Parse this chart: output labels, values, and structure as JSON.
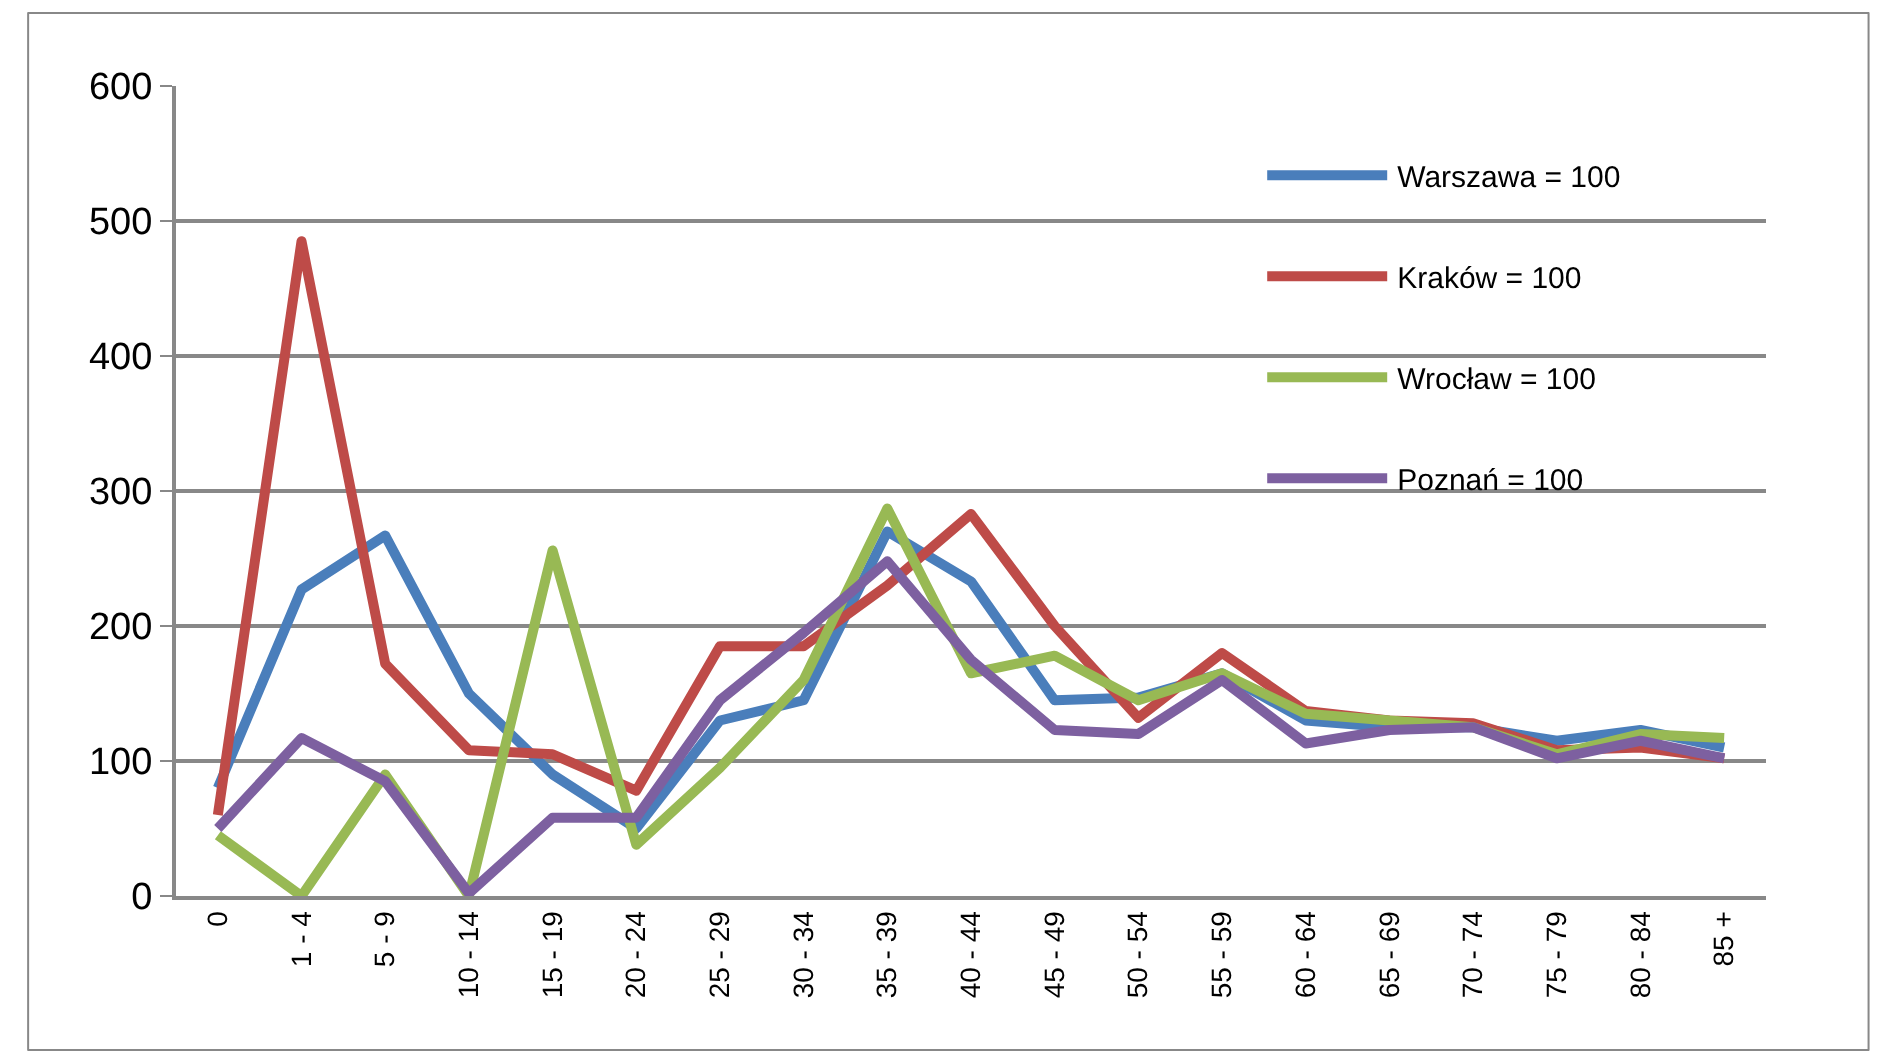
{
  "chart_data": {
    "type": "line",
    "categories": [
      "0",
      "1 - 4",
      "5 - 9",
      "10 - 14",
      "15 - 19",
      "20 - 24",
      "25 - 29",
      "30 - 34",
      "35 - 39",
      "40 - 44",
      "45 - 49",
      "50 - 54",
      "55 - 59",
      "60 - 64",
      "65 - 69",
      "70 - 74",
      "75 - 79",
      "80 - 84",
      "85 +"
    ],
    "series": [
      {
        "name": "Warszawa = 100",
        "color": "#4a7ebb",
        "values": [
          80,
          227,
          267,
          150,
          90,
          50,
          130,
          145,
          270,
          233,
          145,
          147,
          165,
          130,
          125,
          125,
          115,
          123,
          110
        ]
      },
      {
        "name": "Kraków = 100",
        "color": "#be4b48",
        "values": [
          60,
          485,
          172,
          108,
          105,
          78,
          185,
          185,
          230,
          283,
          200,
          132,
          180,
          137,
          130,
          128,
          108,
          110,
          102
        ]
      },
      {
        "name": "Wrocław = 100",
        "color": "#98b954",
        "values": [
          45,
          0,
          90,
          0,
          256,
          38,
          95,
          160,
          287,
          165,
          178,
          145,
          165,
          135,
          130,
          125,
          105,
          120,
          117
        ]
      },
      {
        "name": "Poznań = 100",
        "color": "#7d60a0",
        "values": [
          50,
          117,
          85,
          2,
          58,
          58,
          145,
          195,
          248,
          175,
          123,
          120,
          160,
          113,
          123,
          125,
          102,
          115,
          102
        ]
      }
    ],
    "ylim": [
      0,
      600
    ],
    "yticks": [
      0,
      100,
      200,
      300,
      400,
      500,
      600
    ],
    "grid": "y",
    "legend": "top right",
    "marker": "none",
    "line_style": "solid"
  }
}
